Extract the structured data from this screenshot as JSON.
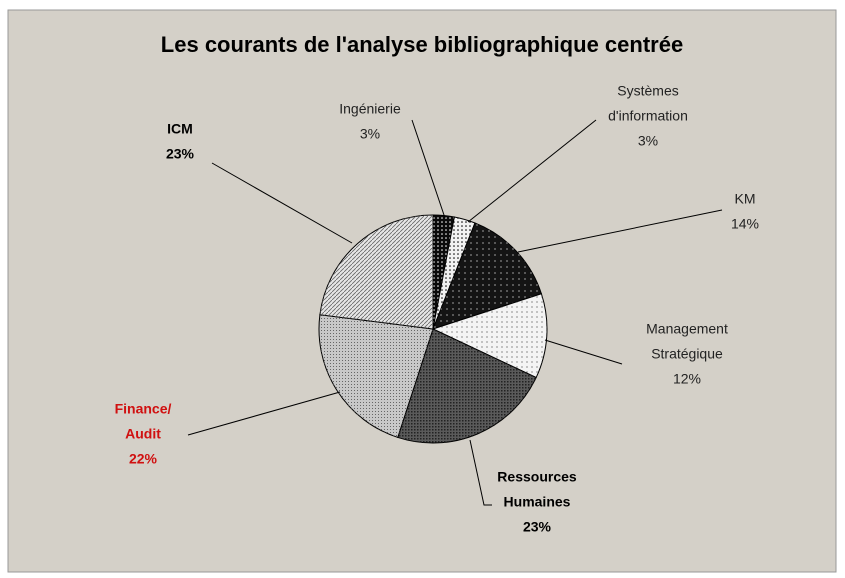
{
  "chart_data": {
    "type": "pie",
    "title": "Les courants de l'analyse bibliographique centrée",
    "categories": [
      [
        "Ingénierie"
      ],
      [
        "Systèmes",
        "d'information"
      ],
      [
        "KM"
      ],
      [
        "Management",
        "Stratégique"
      ],
      [
        "Ressources",
        "Humaines"
      ],
      [
        "Finance/",
        "Audit"
      ],
      [
        "ICM"
      ]
    ],
    "values": [
      3,
      3,
      14,
      12,
      23,
      22,
      23
    ],
    "value_labels": [
      "3%",
      "3%",
      "14%",
      "12%",
      "23%",
      "22%",
      "23%"
    ],
    "colors": [
      "#0a0a0a",
      "#f2f2f2",
      "#141414",
      "#f4f4f4",
      "#5a5a5a",
      "#c8c8c8",
      "#e6e6e6"
    ],
    "label_colors": [
      "#222222",
      "#222222",
      "#222222",
      "#222222",
      "#000000",
      "#d01010",
      "#000000"
    ],
    "label_bold": [
      false,
      false,
      false,
      false,
      true,
      true,
      true
    ],
    "start_angle": 0,
    "direction": "clockwise"
  }
}
